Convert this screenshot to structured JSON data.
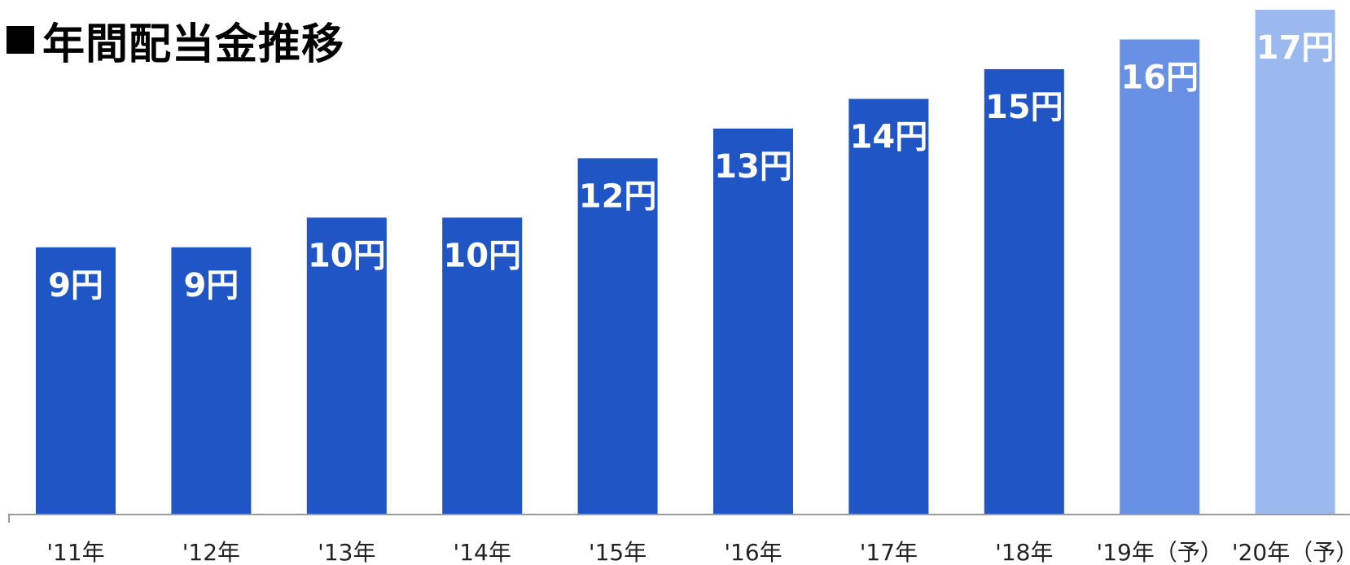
{
  "title": "年間配当金推移",
  "colors": {
    "actual": "#1f55c4",
    "forecast_19": "#6891e6",
    "forecast_20": "#9cb9ef",
    "axis": "#9a9a9a",
    "label": "#ffffff"
  },
  "chart_data": {
    "type": "bar",
    "title": "年間配当金推移",
    "categories": [
      "'11年",
      "'12年",
      "'13年",
      "'14年",
      "'15年",
      "'16年",
      "'17年",
      "'18年",
      "'19年（予）",
      "'20年（予）"
    ],
    "values": [
      9,
      9,
      10,
      10,
      12,
      13,
      14,
      15,
      16,
      17
    ],
    "data_labels": [
      "9円",
      "9円",
      "10円",
      "10円",
      "12円",
      "13円",
      "14円",
      "15円",
      "16円",
      "17円"
    ],
    "bar_colors": [
      "#1f55c4",
      "#1f55c4",
      "#1f55c4",
      "#1f55c4",
      "#1f55c4",
      "#1f55c4",
      "#1f55c4",
      "#1f55c4",
      "#6891e6",
      "#9cb9ef"
    ],
    "xlabel": "",
    "ylabel": "",
    "ylim": [
      0,
      17
    ],
    "grid": false,
    "legend": "none"
  }
}
